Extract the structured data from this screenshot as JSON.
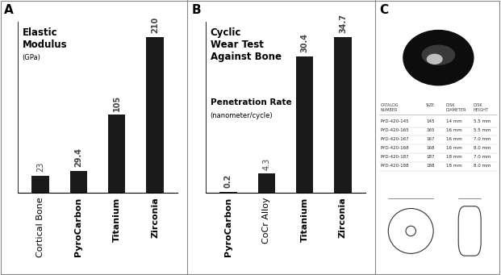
{
  "chart_data": [
    {
      "type": "bar",
      "panel": "A",
      "title": "Elastic\nModulus",
      "ylabel": "(GPa)",
      "categories": [
        "Cortical Bone",
        "PyroCarbon",
        "Titanium",
        "Zirconia"
      ],
      "values": [
        23,
        29.4,
        105,
        210
      ],
      "color": "#1a1a1a",
      "ylim": [
        0,
        230
      ],
      "yticks": [],
      "data_labels": true,
      "tick_labels": "x"
    },
    {
      "type": "bar",
      "panel": "B",
      "title": "Cyclic\nWear Test\nAgainst Bone",
      "subtitle": "Penetration Rate",
      "ylabel": "(nanometer/cycle)",
      "categories": [
        "PyroCarbon",
        "CoCr Alloy",
        "Titanium",
        "Zirconia"
      ],
      "values": [
        0.2,
        4.3,
        30.4,
        34.7
      ],
      "color": "#1a1a1a",
      "ylim": [
        0,
        38
      ],
      "yticks": [],
      "data_labels": true,
      "tick_labels": "x"
    }
  ],
  "panel_c": {
    "panel": "C",
    "table": {
      "header": [
        "CATALOG\nNUMBER",
        "SIZE",
        "DISK\nDIAMETER",
        "DISK\nHEIGHT"
      ],
      "rows": [
        [
          "PYD-420-145",
          "145",
          "14 mm",
          "5.5 mm"
        ],
        [
          "PYD-420-165",
          "165",
          "16 mm",
          "5.5 mm"
        ],
        [
          "PYD-420-167",
          "167",
          "16 mm",
          "7.0 mm"
        ],
        [
          "PYD-420-168",
          "168",
          "16 mm",
          "8.0 mm"
        ],
        [
          "PYD-420-187",
          "187",
          "18 mm",
          "7.0 mm"
        ],
        [
          "PYD-420-188",
          "188",
          "18 mm",
          "8.0 mm"
        ]
      ]
    }
  }
}
